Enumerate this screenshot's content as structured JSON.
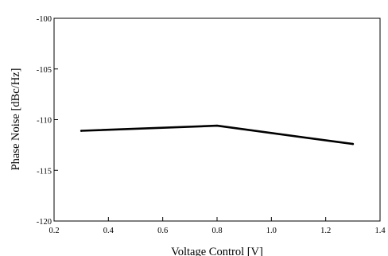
{
  "chart_data": {
    "type": "line",
    "title": "",
    "xlabel": "Voltage Control [V]",
    "ylabel": "Phase Noise [dBc/Hz]",
    "xlim": [
      0.2,
      1.4
    ],
    "ylim": [
      -120,
      -100
    ],
    "xticks": [
      0.2,
      0.4,
      0.6,
      0.8,
      1.0,
      1.2,
      1.4
    ],
    "xtick_labels": [
      "0.2",
      "0.4",
      "0.6",
      "0.8",
      "1.0",
      "1.2",
      "1.4"
    ],
    "yticks": [
      -100,
      -105,
      -110,
      -115,
      -120
    ],
    "ytick_labels": [
      "-100",
      "-105",
      "-110",
      "-115",
      "-120"
    ],
    "grid": false,
    "legend": "none",
    "series": [
      {
        "x": [
          0.3,
          0.8,
          1.3
        ],
        "y": [
          -111.1,
          -110.6,
          -112.4
        ],
        "color": "#000000"
      }
    ]
  }
}
